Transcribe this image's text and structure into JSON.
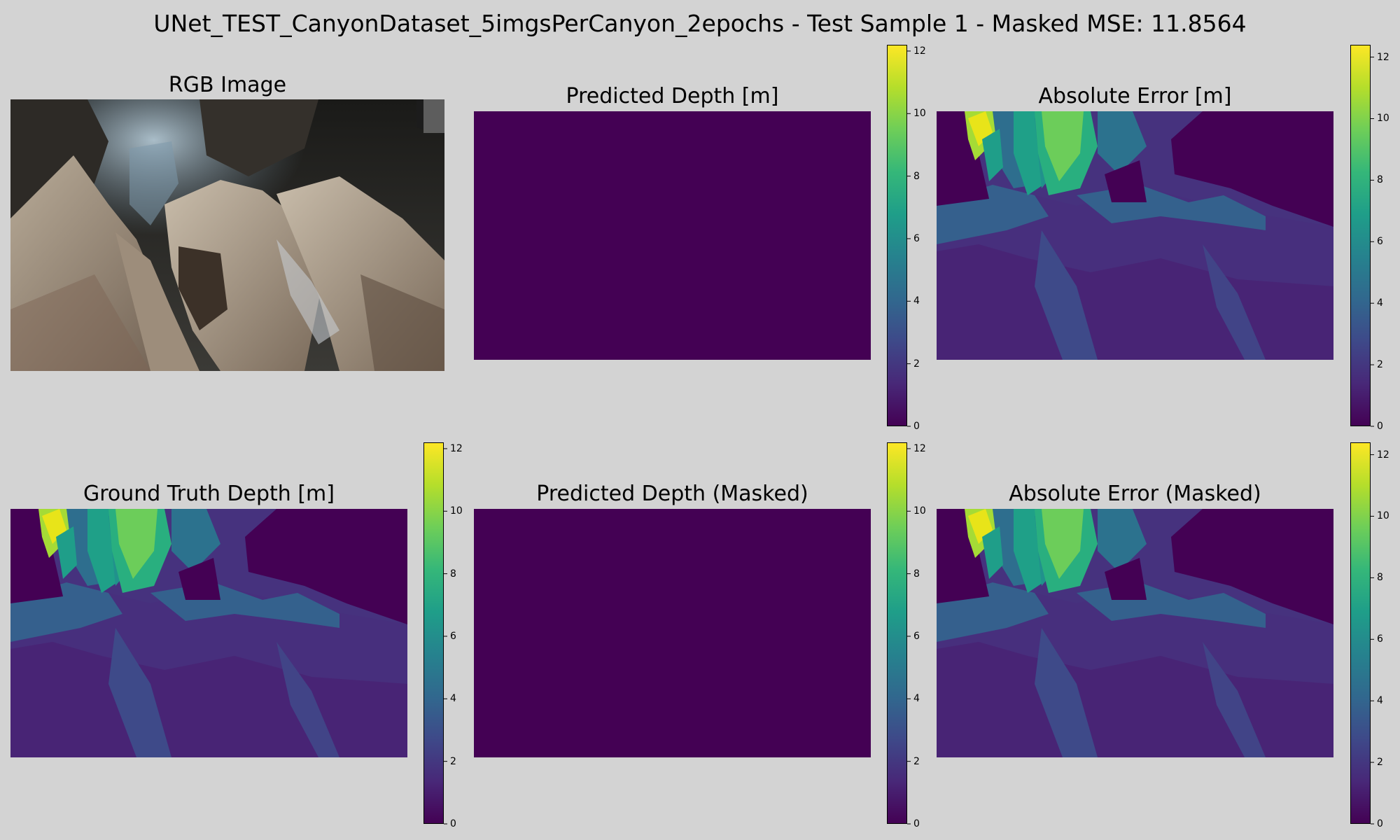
{
  "figure": {
    "title": "UNet_TEST_CanyonDataset_5imgsPerCanyon_2epochs - Test Sample 1 - Masked MSE: 11.8564"
  },
  "colormap": {
    "name": "viridis",
    "stops": [
      "#440154",
      "#482878",
      "#3e4989",
      "#31688e",
      "#26828e",
      "#1f9e89",
      "#35b779",
      "#6ece58",
      "#b5de2b",
      "#fde725"
    ]
  },
  "chart_data": [
    {
      "type": "heatmap",
      "id": "rgb",
      "title": "RGB Image",
      "content": "photo"
    },
    {
      "type": "heatmap",
      "id": "pred",
      "title": "Predicted Depth [m]",
      "content": "uniform",
      "uniform_value": 0,
      "colorbar": {
        "min": 0,
        "max": 12.2,
        "ticks": [
          0,
          2,
          4,
          6,
          8,
          10,
          12
        ]
      }
    },
    {
      "type": "heatmap",
      "id": "abserr",
      "title": "Absolute Error [m]",
      "content": "depth",
      "colorbar": {
        "min": 0,
        "max": 12.4,
        "ticks": [
          0,
          2,
          4,
          6,
          8,
          10,
          12
        ]
      }
    },
    {
      "type": "heatmap",
      "id": "gt",
      "title": "Ground Truth Depth [m]",
      "content": "depth",
      "colorbar": {
        "min": 0,
        "max": 12.2,
        "ticks": [
          0,
          2,
          4,
          6,
          8,
          10,
          12
        ]
      }
    },
    {
      "type": "heatmap",
      "id": "predmask",
      "title": "Predicted Depth (Masked)",
      "content": "uniform",
      "uniform_value": 0,
      "colorbar": {
        "min": 0,
        "max": 12.2,
        "ticks": [
          0,
          2,
          4,
          6,
          8,
          10,
          12
        ]
      }
    },
    {
      "type": "heatmap",
      "id": "abserrmask",
      "title": "Absolute Error (Masked)",
      "content": "depth",
      "colorbar": {
        "min": 0,
        "max": 12.4,
        "ticks": [
          0,
          2,
          4,
          6,
          8,
          10,
          12
        ]
      }
    }
  ]
}
